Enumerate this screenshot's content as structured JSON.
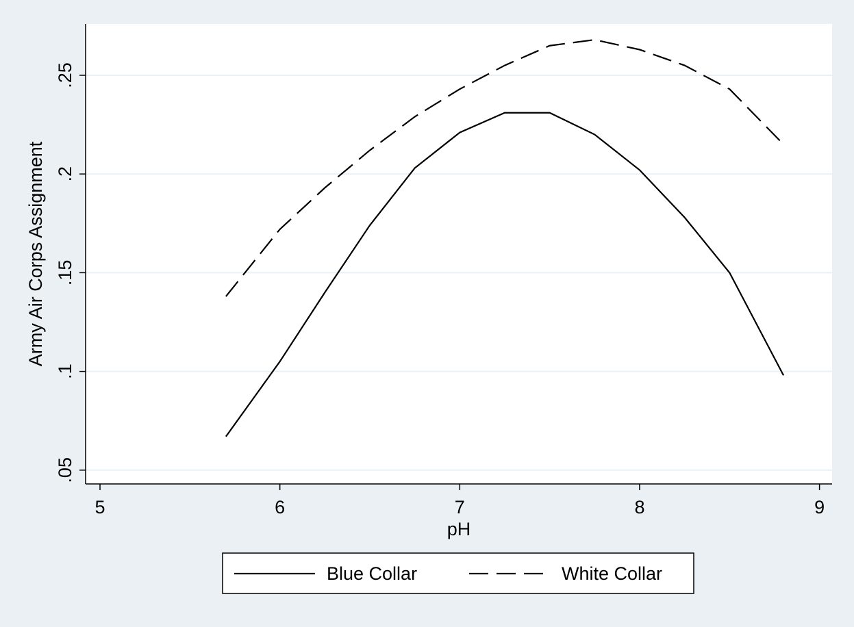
{
  "chart_data": {
    "type": "line",
    "x_label": "pH",
    "y_label": "Army Air Corps Assignment",
    "x": [
      5.7,
      6,
      6.25,
      6.5,
      6.75,
      7,
      7.25,
      7.5,
      7.75,
      8,
      8.25,
      8.5,
      8.8
    ],
    "series": [
      {
        "name": "Blue Collar",
        "color": "#000000",
        "dash": "solid",
        "values": [
          0.067,
          0.105,
          0.14,
          0.174,
          0.203,
          0.221,
          0.231,
          0.231,
          0.22,
          0.202,
          0.178,
          0.15,
          0.098
        ]
      },
      {
        "name": "White Collar",
        "color": "#000000",
        "dash": "dashed",
        "values": [
          0.138,
          0.172,
          0.193,
          0.212,
          0.229,
          0.243,
          0.255,
          0.265,
          0.268,
          0.263,
          0.255,
          0.243,
          0.215
        ]
      }
    ],
    "xlim": [
      4.92,
      9.07
    ],
    "ylim": [
      0.043,
      0.276
    ],
    "xticks": [
      5,
      6,
      7,
      8,
      9
    ],
    "yticks": [
      {
        "value": 0.05,
        "label": ".05"
      },
      {
        "value": 0.1,
        "label": ".1"
      },
      {
        "value": 0.15,
        "label": ".15"
      },
      {
        "value": 0.2,
        "label": ".2"
      },
      {
        "value": 0.25,
        "label": ".25"
      }
    ],
    "grid": true,
    "legend": "bottom"
  }
}
